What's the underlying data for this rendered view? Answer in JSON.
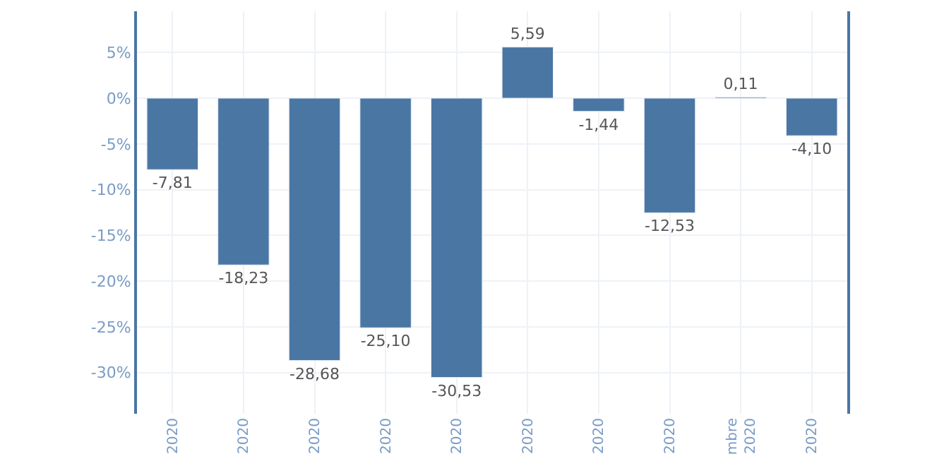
{
  "chart_data": {
    "type": "bar",
    "categories": [
      "2020",
      "2020",
      "2020",
      "2020",
      "2020",
      "2020",
      "2020",
      "2020",
      "mbre\n2020",
      "2020"
    ],
    "values": [
      -7.81,
      -18.23,
      -28.68,
      -25.1,
      -30.53,
      5.59,
      -1.44,
      -12.53,
      0.11,
      -4.1
    ],
    "value_labels": [
      "-7,81",
      "-18,23",
      "-28,68",
      "-25,10",
      "-30,53",
      "5,59",
      "-1,44",
      "-12,53",
      "0,11",
      "-4,10"
    ],
    "color": "#4a76a4",
    "ylim": [
      -34.5,
      9.5
    ],
    "yticks": [
      {
        "value": 5,
        "label": "5%"
      },
      {
        "value": 0,
        "label": "0%"
      },
      {
        "value": -5,
        "label": "-5%"
      },
      {
        "value": -10,
        "label": "-10%"
      },
      {
        "value": -15,
        "label": "-15%"
      },
      {
        "value": -20,
        "label": "-20%"
      },
      {
        "value": -25,
        "label": "-25%"
      },
      {
        "value": -30,
        "label": "-30%"
      }
    ],
    "grid": true
  }
}
